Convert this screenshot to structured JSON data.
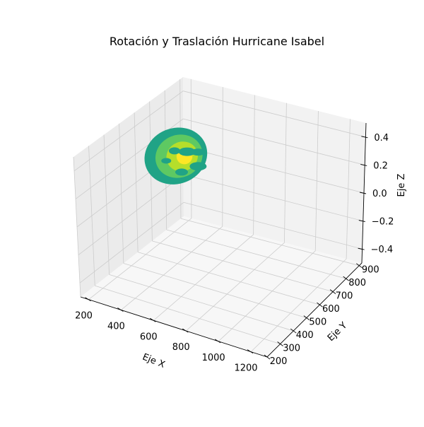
{
  "chart_data": {
    "type": "scatter",
    "projection": "3d",
    "title": "Rotación y Traslación Hurricane Isabel",
    "xlabel": "Eje X",
    "ylabel": "Eje Y",
    "zlabel": "Eje Z",
    "x_ticks": [
      "200",
      "400",
      "600",
      "800",
      "1000",
      "1200"
    ],
    "y_ticks": [
      "200",
      "300",
      "400",
      "500",
      "600",
      "700",
      "800",
      "900"
    ],
    "z_ticks": [
      "−0.4",
      "−0.2",
      "0.0",
      "0.2",
      "0.4"
    ],
    "xlim": [
      150,
      1300
    ],
    "ylim": [
      200,
      920
    ],
    "zlim": [
      -0.5,
      0.5
    ],
    "grid": true,
    "colormap": "viridis",
    "colors": {
      "outer": "#20a386",
      "mid": "#5ec962",
      "inner": "#b5de2b",
      "core": "#fde725",
      "pane_left": "#ebebeb",
      "pane_back": "#f2f2f2",
      "pane_floor": "#f7f7f7",
      "grid": "#cccccc"
    },
    "series": [
      {
        "note_z": 0.0,
        "bands": [
          {
            "ring": "outer",
            "center": [
              185,
              850
            ],
            "rx": 340,
            "ry": 170
          },
          {
            "ring": "mid",
            "center": [
              200,
              855
            ],
            "rx": 255,
            "ry": 130
          },
          {
            "ring": "inner",
            "center": [
              215,
              860
            ],
            "rx": 170,
            "ry": 90
          },
          {
            "ring": "core",
            "center": [
              225,
              865
            ],
            "rx": 85,
            "ry": 48
          }
        ]
      }
    ]
  }
}
